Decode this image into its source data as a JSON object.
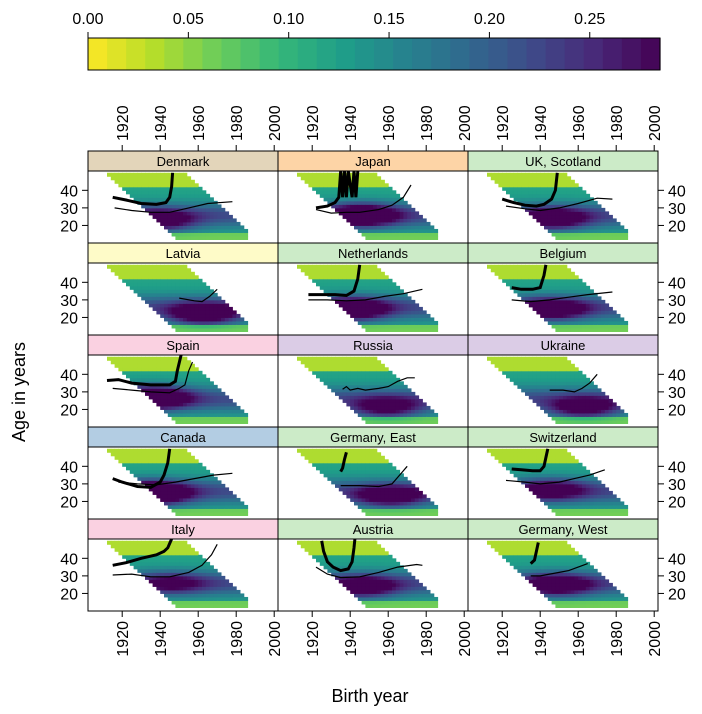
{
  "chart_data": {
    "type": "heatmap",
    "title": "",
    "xlabel": "Birth year",
    "ylabel": "Age in years",
    "x_ticks": [
      1920,
      1940,
      1960,
      1980,
      2000
    ],
    "y_ticks": [
      20,
      30,
      40
    ],
    "xlim": [
      1902,
      2002
    ],
    "ylim": [
      10,
      51
    ],
    "colorbar": {
      "ticks": [
        0.0,
        0.05,
        0.1,
        0.15,
        0.2,
        0.25
      ],
      "tick_labels": [
        "0.00",
        "0.05",
        "0.10",
        "0.15",
        "0.20",
        "0.25"
      ],
      "range": [
        0.0,
        0.285
      ],
      "palette": "viridis-reversed",
      "colors": [
        "#FDE725",
        "#B8DE29",
        "#6DCD59",
        "#35B779",
        "#1F9E89",
        "#26828E",
        "#31688E",
        "#3E4A89",
        "#482878",
        "#440154"
      ]
    },
    "panels": [
      {
        "name": "Denmark",
        "strip_color": "#E3D5BA",
        "thick_line": [
          [
            1915,
            36
          ],
          [
            1922,
            34.5
          ],
          [
            1930,
            32.5
          ],
          [
            1938,
            32
          ],
          [
            1943,
            33
          ],
          [
            1945,
            36
          ],
          [
            1946,
            42
          ],
          [
            1946.5,
            50
          ]
        ],
        "thin_line": [
          [
            1916,
            30
          ],
          [
            1925,
            28.5
          ],
          [
            1935,
            27.5
          ],
          [
            1945,
            27.5
          ],
          [
            1955,
            30
          ],
          [
            1965,
            32.5
          ],
          [
            1978,
            33.5
          ]
        ],
        "dark_center": [
          1938,
          22
        ],
        "dark_strength": 0.55
      },
      {
        "name": "Japan",
        "strip_color": "#FDD4A6",
        "thick_line": [
          [
            1922,
            30
          ],
          [
            1928,
            31
          ],
          [
            1932,
            33
          ],
          [
            1934,
            36
          ],
          [
            1935,
            51
          ],
          [
            1936,
            36
          ],
          [
            1937,
            51
          ],
          [
            1938,
            36
          ],
          [
            1939,
            51
          ],
          [
            1941,
            36
          ],
          [
            1942,
            51
          ],
          [
            1943,
            36
          ],
          [
            1944,
            51
          ]
        ],
        "thin_line": [
          [
            1922,
            29
          ],
          [
            1930,
            27
          ],
          [
            1938,
            27.5
          ],
          [
            1945,
            27.5
          ],
          [
            1955,
            29
          ],
          [
            1962,
            31.5
          ],
          [
            1968,
            36
          ],
          [
            1972,
            43
          ]
        ],
        "dark_center": [
          1945,
          25
        ],
        "dark_strength": 0.75
      },
      {
        "name": "UK, Scotland",
        "strip_color": "#CCEBC8",
        "thick_line": [
          [
            1920,
            35
          ],
          [
            1926,
            33
          ],
          [
            1932,
            31.5
          ],
          [
            1938,
            31
          ],
          [
            1942,
            32
          ],
          [
            1946,
            35
          ],
          [
            1948,
            40
          ],
          [
            1949,
            50
          ]
        ],
        "thin_line": [
          [
            1922,
            31
          ],
          [
            1932,
            29.5
          ],
          [
            1940,
            28.5
          ],
          [
            1950,
            30
          ],
          [
            1960,
            32.5
          ],
          [
            1970,
            35.5
          ],
          [
            1978,
            35
          ]
        ],
        "dark_center": [
          1945,
          23
        ],
        "dark_strength": 0.6
      },
      {
        "name": "Latvia",
        "strip_color": "#FEFBC8",
        "thick_line": [],
        "thin_line": [
          [
            1950,
            31
          ],
          [
            1958,
            29.5
          ],
          [
            1962,
            29
          ],
          [
            1966,
            32
          ],
          [
            1970,
            36
          ]
        ],
        "dark_center": [
          1962,
          21
        ],
        "dark_strength": 0.65
      },
      {
        "name": "Netherlands",
        "strip_color": "#CCEBC8",
        "thick_line": [
          [
            1918,
            33
          ],
          [
            1925,
            33
          ],
          [
            1932,
            33
          ],
          [
            1938,
            32.5
          ],
          [
            1942,
            35
          ],
          [
            1944,
            42
          ],
          [
            1945,
            50
          ]
        ],
        "thin_line": [
          [
            1918,
            30
          ],
          [
            1928,
            30
          ],
          [
            1938,
            29.5
          ],
          [
            1948,
            30
          ],
          [
            1958,
            32
          ],
          [
            1968,
            33.5
          ],
          [
            1978,
            36
          ]
        ],
        "dark_center": [
          1940,
          24
        ],
        "dark_strength": 0.7
      },
      {
        "name": "Belgium",
        "strip_color": "#CCEBC8",
        "thick_line": [
          [
            1925,
            37
          ],
          [
            1930,
            36
          ],
          [
            1936,
            36
          ],
          [
            1940,
            37
          ],
          [
            1942,
            44
          ],
          [
            1943,
            50
          ]
        ],
        "thin_line": [
          [
            1925,
            30
          ],
          [
            1935,
            29
          ],
          [
            1945,
            30
          ],
          [
            1955,
            31.5
          ],
          [
            1965,
            33
          ],
          [
            1978,
            34.5
          ]
        ],
        "dark_center": [
          1945,
          24
        ],
        "dark_strength": 0.6
      },
      {
        "name": "Spain",
        "strip_color": "#FAD1E1",
        "thick_line": [
          [
            1912,
            36.5
          ],
          [
            1918,
            37
          ],
          [
            1925,
            35
          ],
          [
            1935,
            34
          ],
          [
            1945,
            34
          ],
          [
            1948,
            36
          ],
          [
            1949,
            42
          ],
          [
            1951,
            51
          ]
        ],
        "thin_line": [
          [
            1915,
            32
          ],
          [
            1925,
            31
          ],
          [
            1935,
            30
          ],
          [
            1945,
            29.5
          ],
          [
            1950,
            32
          ],
          [
            1953,
            34
          ],
          [
            1955,
            42
          ],
          [
            1957,
            47
          ]
        ],
        "dark_center": [
          1935,
          26
        ],
        "dark_strength": 0.8
      },
      {
        "name": "Russia",
        "strip_color": "#DBCCE6",
        "thick_line": [],
        "thin_line": [
          [
            1936,
            31.5
          ],
          [
            1938,
            33
          ],
          [
            1940,
            31
          ],
          [
            1944,
            32
          ],
          [
            1948,
            31
          ],
          [
            1955,
            32
          ],
          [
            1960,
            33
          ],
          [
            1965,
            36
          ],
          [
            1970,
            38
          ],
          [
            1974,
            38
          ]
        ],
        "dark_center": [
          1958,
          20
        ],
        "dark_strength": 0.5
      },
      {
        "name": "Ukraine",
        "strip_color": "#DBCCE6",
        "thick_line": [],
        "thin_line": [
          [
            1945,
            31
          ],
          [
            1952,
            31
          ],
          [
            1958,
            30
          ],
          [
            1962,
            32
          ],
          [
            1966,
            35
          ],
          [
            1970,
            40
          ]
        ],
        "dark_center": [
          1962,
          20
        ],
        "dark_strength": 0.55
      },
      {
        "name": "Canada",
        "strip_color": "#B3CDE3",
        "thick_line": [
          [
            1915,
            33
          ],
          [
            1920,
            31
          ],
          [
            1928,
            28.5
          ],
          [
            1935,
            28
          ],
          [
            1940,
            31
          ],
          [
            1942,
            35
          ],
          [
            1944,
            42
          ],
          [
            1945,
            50
          ]
        ],
        "thin_line": [
          [
            1918,
            31
          ],
          [
            1928,
            30
          ],
          [
            1938,
            29.5
          ],
          [
            1948,
            31
          ],
          [
            1958,
            33
          ],
          [
            1968,
            35
          ],
          [
            1978,
            36
          ]
        ],
        "dark_center": [
          1935,
          24
        ],
        "dark_strength": 0.9
      },
      {
        "name": "Germany, East",
        "strip_color": "#CCEBC8",
        "thick_line": [
          [
            1935,
            37
          ],
          [
            1936,
            39
          ],
          [
            1937,
            44
          ],
          [
            1938,
            48
          ]
        ],
        "thin_line": [
          [
            1935,
            29
          ],
          [
            1945,
            29
          ],
          [
            1955,
            28.5
          ],
          [
            1962,
            30
          ],
          [
            1966,
            35
          ],
          [
            1970,
            40
          ]
        ],
        "dark_center": [
          1960,
          22
        ],
        "dark_strength": 0.55
      },
      {
        "name": "Switzerland",
        "strip_color": "#CCEBC8",
        "thick_line": [
          [
            1925,
            38.5
          ],
          [
            1930,
            38
          ],
          [
            1936,
            37.5
          ],
          [
            1940,
            37.5
          ],
          [
            1942,
            40
          ],
          [
            1943,
            45
          ],
          [
            1944,
            50
          ]
        ],
        "thin_line": [
          [
            1922,
            32
          ],
          [
            1932,
            31
          ],
          [
            1940,
            30
          ],
          [
            1950,
            31
          ],
          [
            1958,
            33
          ],
          [
            1966,
            35
          ],
          [
            1974,
            38
          ]
        ],
        "dark_center": [
          1945,
          26
        ],
        "dark_strength": 0.45
      },
      {
        "name": "Italy",
        "strip_color": "#FAD1E1",
        "thick_line": [
          [
            1915,
            36
          ],
          [
            1922,
            37.5
          ],
          [
            1930,
            40
          ],
          [
            1938,
            42
          ],
          [
            1942,
            44
          ],
          [
            1944,
            46
          ],
          [
            1945,
            48.5
          ],
          [
            1946,
            51
          ]
        ],
        "thin_line": [
          [
            1915,
            30.5
          ],
          [
            1925,
            31
          ],
          [
            1935,
            29.5
          ],
          [
            1945,
            29.5
          ],
          [
            1955,
            32
          ],
          [
            1962,
            36
          ],
          [
            1967,
            42
          ],
          [
            1970,
            48
          ]
        ],
        "dark_center": [
          1945,
          25
        ],
        "dark_strength": 0.35
      },
      {
        "name": "Austria",
        "strip_color": "#CCEBC8",
        "thick_line": [
          [
            1925,
            50
          ],
          [
            1926,
            44
          ],
          [
            1928,
            38
          ],
          [
            1931,
            35
          ],
          [
            1935,
            33
          ],
          [
            1939,
            34
          ],
          [
            1941,
            38
          ],
          [
            1942,
            46
          ],
          [
            1942.5,
            51
          ]
        ],
        "thin_line": [
          [
            1922,
            35
          ],
          [
            1928,
            31
          ],
          [
            1935,
            29
          ],
          [
            1945,
            29.5
          ],
          [
            1955,
            32
          ],
          [
            1965,
            35
          ],
          [
            1975,
            36.5
          ],
          [
            1978,
            36
          ]
        ],
        "dark_center": [
          1945,
          23
        ],
        "dark_strength": 0.55
      },
      {
        "name": "Germany, West",
        "strip_color": "#CCEBC8",
        "thick_line": [
          [
            1935,
            37
          ],
          [
            1937,
            39
          ],
          [
            1938,
            44
          ],
          [
            1939,
            49
          ]
        ],
        "thin_line": [
          [
            1935,
            30
          ],
          [
            1940,
            30
          ],
          [
            1945,
            31
          ],
          [
            1950,
            32
          ],
          [
            1955,
            33
          ],
          [
            1960,
            35
          ],
          [
            1965,
            37
          ]
        ],
        "dark_center": [
          1948,
          24
        ],
        "dark_strength": 0.55
      }
    ]
  }
}
